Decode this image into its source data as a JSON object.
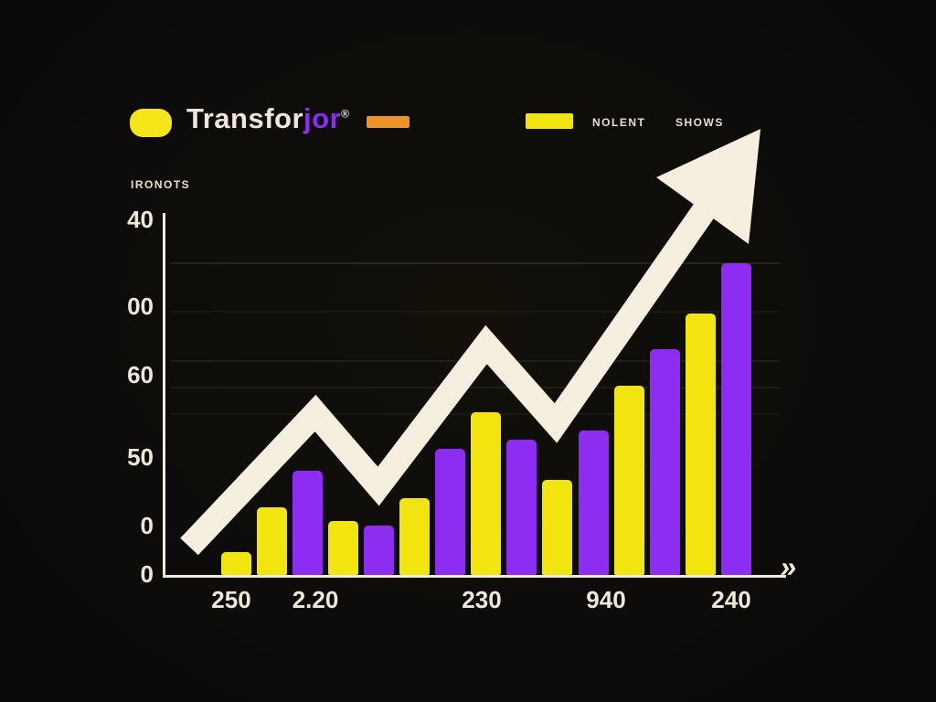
{
  "header": {
    "brand_prefix": "Transfor",
    "brand_suffix": "jor",
    "trademark": "®"
  },
  "legend": {
    "label_1": "NOLENT",
    "label_2": "SHOWS"
  },
  "axis_title": "IRONOTS",
  "footer_icon": "»",
  "colors": {
    "background": "#0e0c0a",
    "yellow": "#f2e40e",
    "purple": "#8d2df2",
    "orange": "#f0922b",
    "arrow": "#f6efdf",
    "axis": "#f3ecdc",
    "text": "#efe8d8"
  },
  "chart_data": {
    "type": "bar",
    "title": "Transforjor",
    "ylabel": "IRONOTS",
    "xlabel": "",
    "ylim": [
      0,
      40
    ],
    "grid": true,
    "legend_position": "top",
    "legend_entries": [
      "NOLENT",
      "SHOWS"
    ],
    "y_tick_labels": [
      "40",
      "00",
      "60",
      "50",
      "0",
      "0"
    ],
    "x_tick_labels": [
      "250",
      "2.20",
      "230",
      "940",
      "240"
    ],
    "annotations": [
      "large cream zigzag arrow rising left-to-right indicating upward growth trend"
    ],
    "series": [
      {
        "name": "bars",
        "values": [
          2.5,
          7.5,
          11.5,
          6,
          5.5,
          8.5,
          14,
          18,
          15,
          10.5,
          16,
          21,
          25,
          29,
          34.5
        ],
        "colors": [
          "yellow",
          "yellow",
          "purple",
          "yellow",
          "purple",
          "yellow",
          "purple",
          "yellow",
          "purple",
          "yellow",
          "purple",
          "yellow",
          "purple",
          "yellow",
          "purple"
        ]
      }
    ]
  }
}
